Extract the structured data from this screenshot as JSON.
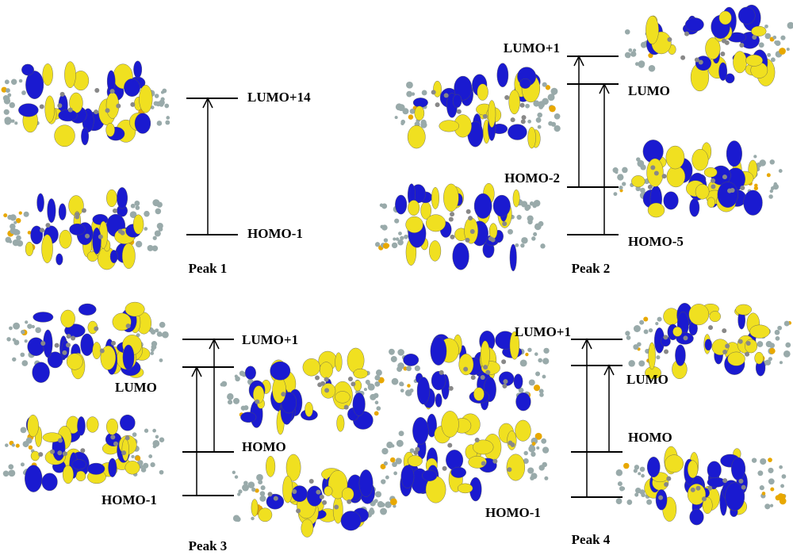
{
  "panels": [
    {
      "label": "Peak 1",
      "levels": [
        "LUMO+14",
        "HOMO-1"
      ]
    },
    {
      "label": "Peak 2",
      "levels": [
        "LUMO+1",
        "LUMO",
        "HOMO-2",
        "HOMO-5"
      ]
    },
    {
      "label": "Peak 3",
      "levels": [
        "LUMO+1",
        "LUMO",
        "HOMO",
        "HOMO-1"
      ]
    },
    {
      "label": "Peak 4",
      "levels": [
        "LUMO+1",
        "LUMO",
        "HOMO",
        "HOMO-1"
      ]
    }
  ]
}
